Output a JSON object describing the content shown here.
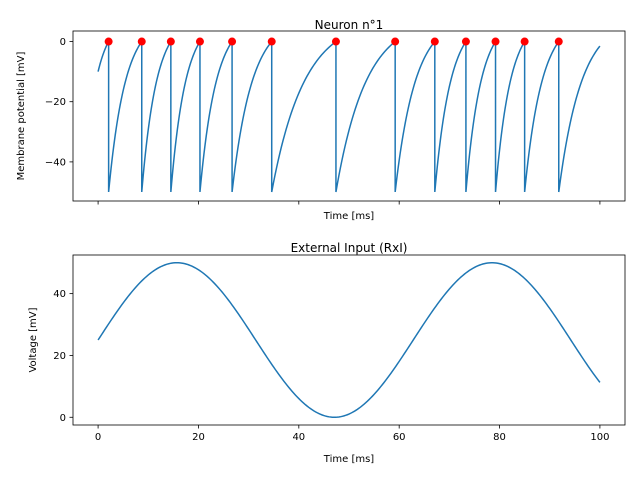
{
  "chart_data": [
    {
      "type": "line",
      "title": "Neuron n°1",
      "xlabel": "Time [ms]",
      "ylabel": "Membrane potential [mV]",
      "xlim": [
        -5,
        105
      ],
      "ylim": [
        -53,
        3.5
      ],
      "xticks": [
        0,
        20,
        40,
        60,
        80,
        100
      ],
      "show_xtick_labels": false,
      "yticks": [
        0,
        -20,
        -40
      ],
      "ytick_labels": [
        "0",
        "−20",
        "−40"
      ],
      "grid": false,
      "line_color": "#1f77b4",
      "marker_color": "#ff0000",
      "reset_value": -50,
      "threshold": 0,
      "start": {
        "x": 0,
        "y": -10
      },
      "end": {
        "x": 100,
        "y": -1.5
      },
      "spike_times": [
        2.1,
        8.7,
        14.5,
        20.3,
        26.7,
        34.6,
        47.4,
        59.2,
        67.1,
        73.3,
        79.2,
        85.0,
        91.8
      ],
      "spike_markers": {
        "y": 0
      }
    },
    {
      "type": "line",
      "title": "External Input (RxI)",
      "xlabel": "Time [ms]",
      "ylabel": "Voltage [mV]",
      "xlim": [
        -5,
        105
      ],
      "ylim": [
        -2.5,
        52.5
      ],
      "xticks": [
        0,
        20,
        40,
        60,
        80,
        100
      ],
      "xtick_labels": [
        "0",
        "20",
        "40",
        "60",
        "80",
        "100"
      ],
      "yticks": [
        0,
        20,
        40
      ],
      "ytick_labels": [
        "0",
        "20",
        "40"
      ],
      "grid": false,
      "line_color": "#1f77b4",
      "series": [
        {
          "function": "25 + 25*sin(2*pi*t/62.8)",
          "t_range": [
            0,
            100
          ]
        }
      ]
    }
  ]
}
